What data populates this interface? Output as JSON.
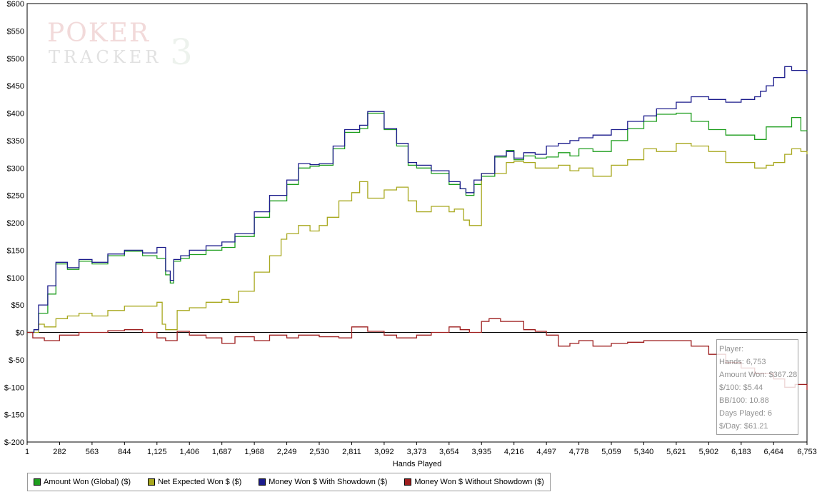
{
  "watermark": {
    "line1": "POKER",
    "line2": "TRACKER",
    "suffix": "3"
  },
  "chart_data": {
    "type": "line",
    "xlabel": "Hands Played",
    "ylabel": "",
    "xlim": [
      1,
      6753
    ],
    "ylim": [
      -200,
      600
    ],
    "y_ticks": [
      600,
      550,
      500,
      450,
      400,
      350,
      300,
      250,
      200,
      150,
      100,
      50,
      0,
      -50,
      -100,
      -150,
      -200
    ],
    "y_tick_labels": [
      "$600",
      "$550",
      "$500",
      "$450",
      "$400",
      "$350",
      "$300",
      "$250",
      "$200",
      "$150",
      "$100",
      "$50",
      "$0",
      "$-50",
      "$-100",
      "$-150",
      "$-200"
    ],
    "x_ticks": [
      1,
      282,
      563,
      844,
      1125,
      1406,
      1687,
      1968,
      2249,
      2530,
      2811,
      3092,
      3373,
      3654,
      3935,
      4216,
      4497,
      4778,
      5059,
      5340,
      5621,
      5902,
      6183,
      6464,
      6753
    ],
    "x_tick_labels": [
      "1",
      "282",
      "563",
      "844",
      "1,125",
      "1,406",
      "1,687",
      "1,968",
      "2,249",
      "2,530",
      "2,811",
      "3,092",
      "3,373",
      "3,654",
      "3,935",
      "4,216",
      "4,497",
      "4,778",
      "5,059",
      "5,340",
      "5,621",
      "5,902",
      "6,183",
      "6,464",
      "6,753"
    ],
    "grid": false,
    "legend_position": "bottom",
    "series": [
      {
        "name": "Amount Won (Global) ($)",
        "color": "#1e9e1e",
        "x": [
          1,
          60,
          100,
          180,
          250,
          350,
          450,
          563,
          700,
          844,
          1000,
          1125,
          1200,
          1240,
          1270,
          1330,
          1406,
          1550,
          1687,
          1800,
          1968,
          2100,
          2249,
          2350,
          2450,
          2530,
          2650,
          2750,
          2880,
          2950,
          3092,
          3200,
          3300,
          3373,
          3500,
          3654,
          3750,
          3800,
          3870,
          3935,
          4050,
          4150,
          4216,
          4300,
          4400,
          4497,
          4600,
          4700,
          4778,
          4900,
          5059,
          5200,
          5340,
          5450,
          5621,
          5750,
          5902,
          6050,
          6183,
          6300,
          6400,
          6464,
          6560,
          6620,
          6700,
          6753
        ],
        "y": [
          0,
          5,
          35,
          70,
          125,
          115,
          130,
          125,
          140,
          148,
          140,
          135,
          105,
          90,
          130,
          135,
          142,
          150,
          155,
          175,
          210,
          240,
          270,
          300,
          303,
          305,
          335,
          365,
          372,
          400,
          370,
          340,
          305,
          300,
          290,
          270,
          262,
          250,
          270,
          285,
          320,
          332,
          315,
          322,
          318,
          320,
          328,
          322,
          335,
          330,
          350,
          372,
          385,
          398,
          400,
          385,
          370,
          360,
          360,
          352,
          375,
          375,
          375,
          392,
          368,
          367
        ]
      },
      {
        "name": "Net Expected Won $ ($)",
        "color": "#a8a81e",
        "x": [
          1,
          60,
          100,
          150,
          250,
          350,
          450,
          563,
          700,
          844,
          1000,
          1125,
          1170,
          1200,
          1300,
          1406,
          1550,
          1687,
          1750,
          1830,
          1968,
          2100,
          2200,
          2249,
          2350,
          2450,
          2530,
          2600,
          2700,
          2811,
          2880,
          2950,
          3092,
          3200,
          3300,
          3373,
          3500,
          3654,
          3700,
          3780,
          3830,
          3935,
          4050,
          4150,
          4216,
          4300,
          4400,
          4497,
          4600,
          4700,
          4778,
          4900,
          5059,
          5200,
          5340,
          5450,
          5621,
          5750,
          5902,
          6050,
          6183,
          6300,
          6400,
          6464,
          6560,
          6620,
          6700,
          6753
        ],
        "y": [
          0,
          0,
          15,
          10,
          25,
          30,
          35,
          30,
          40,
          48,
          48,
          55,
          15,
          5,
          40,
          45,
          55,
          60,
          55,
          75,
          110,
          140,
          170,
          180,
          195,
          185,
          195,
          210,
          240,
          255,
          275,
          245,
          260,
          265,
          240,
          220,
          230,
          220,
          225,
          205,
          195,
          290,
          290,
          310,
          312,
          310,
          300,
          300,
          305,
          295,
          300,
          285,
          305,
          315,
          335,
          330,
          345,
          340,
          330,
          310,
          310,
          300,
          305,
          310,
          325,
          335,
          330,
          325
        ]
      },
      {
        "name": "Money Won $ With Showdown ($)",
        "color": "#1c1c8c",
        "x": [
          1,
          60,
          100,
          180,
          250,
          350,
          450,
          563,
          700,
          844,
          1000,
          1125,
          1200,
          1240,
          1270,
          1330,
          1406,
          1550,
          1687,
          1800,
          1968,
          2100,
          2249,
          2350,
          2450,
          2530,
          2650,
          2750,
          2880,
          2950,
          3092,
          3200,
          3300,
          3373,
          3500,
          3654,
          3750,
          3800,
          3870,
          3935,
          4050,
          4150,
          4216,
          4300,
          4400,
          4497,
          4600,
          4700,
          4778,
          4900,
          5059,
          5200,
          5340,
          5450,
          5621,
          5750,
          5902,
          6050,
          6183,
          6300,
          6350,
          6400,
          6464,
          6560,
          6620,
          6700,
          6753
        ],
        "y": [
          0,
          5,
          50,
          85,
          128,
          118,
          133,
          128,
          143,
          150,
          145,
          155,
          112,
          95,
          133,
          140,
          150,
          158,
          165,
          180,
          220,
          250,
          278,
          308,
          306,
          308,
          340,
          370,
          378,
          403,
          372,
          345,
          310,
          305,
          295,
          275,
          262,
          255,
          278,
          290,
          322,
          330,
          318,
          328,
          325,
          340,
          345,
          350,
          355,
          360,
          370,
          385,
          395,
          408,
          420,
          430,
          425,
          420,
          425,
          430,
          440,
          450,
          465,
          485,
          478,
          478,
          472
        ]
      },
      {
        "name": "Money Won $ Without Showdown ($)",
        "color": "#9e1e1e",
        "x": [
          1,
          50,
          150,
          282,
          450,
          563,
          700,
          844,
          1000,
          1125,
          1200,
          1300,
          1406,
          1550,
          1687,
          1800,
          1968,
          2100,
          2249,
          2350,
          2530,
          2700,
          2811,
          2950,
          3092,
          3200,
          3373,
          3500,
          3654,
          3750,
          3830,
          3935,
          4000,
          4100,
          4216,
          4300,
          4400,
          4497,
          4600,
          4700,
          4778,
          4900,
          5059,
          5200,
          5340,
          5450,
          5621,
          5750,
          5902,
          6050,
          6183,
          6300,
          6464,
          6560,
          6650,
          6753
        ],
        "y": [
          0,
          -10,
          -15,
          -5,
          0,
          0,
          3,
          5,
          0,
          -10,
          -15,
          2,
          -5,
          -10,
          -20,
          -8,
          -15,
          -5,
          -10,
          -5,
          -8,
          -10,
          10,
          2,
          -5,
          -10,
          -5,
          0,
          10,
          5,
          0,
          20,
          25,
          20,
          20,
          5,
          2,
          -5,
          -25,
          -20,
          -15,
          -25,
          -20,
          -18,
          -15,
          -15,
          -15,
          -25,
          -40,
          -55,
          -65,
          -75,
          -85,
          -100,
          -95,
          -105
        ]
      }
    ]
  },
  "tooltip": {
    "title": "Player:",
    "hands": "Hands: 6,753",
    "amount_won": "Amount Won: $367.28",
    "per100": "$/100: $5.44",
    "bb100": "BB/100: 10.88",
    "days_played": "Days Played: 6",
    "per_day": "$/Day: $61.21"
  }
}
